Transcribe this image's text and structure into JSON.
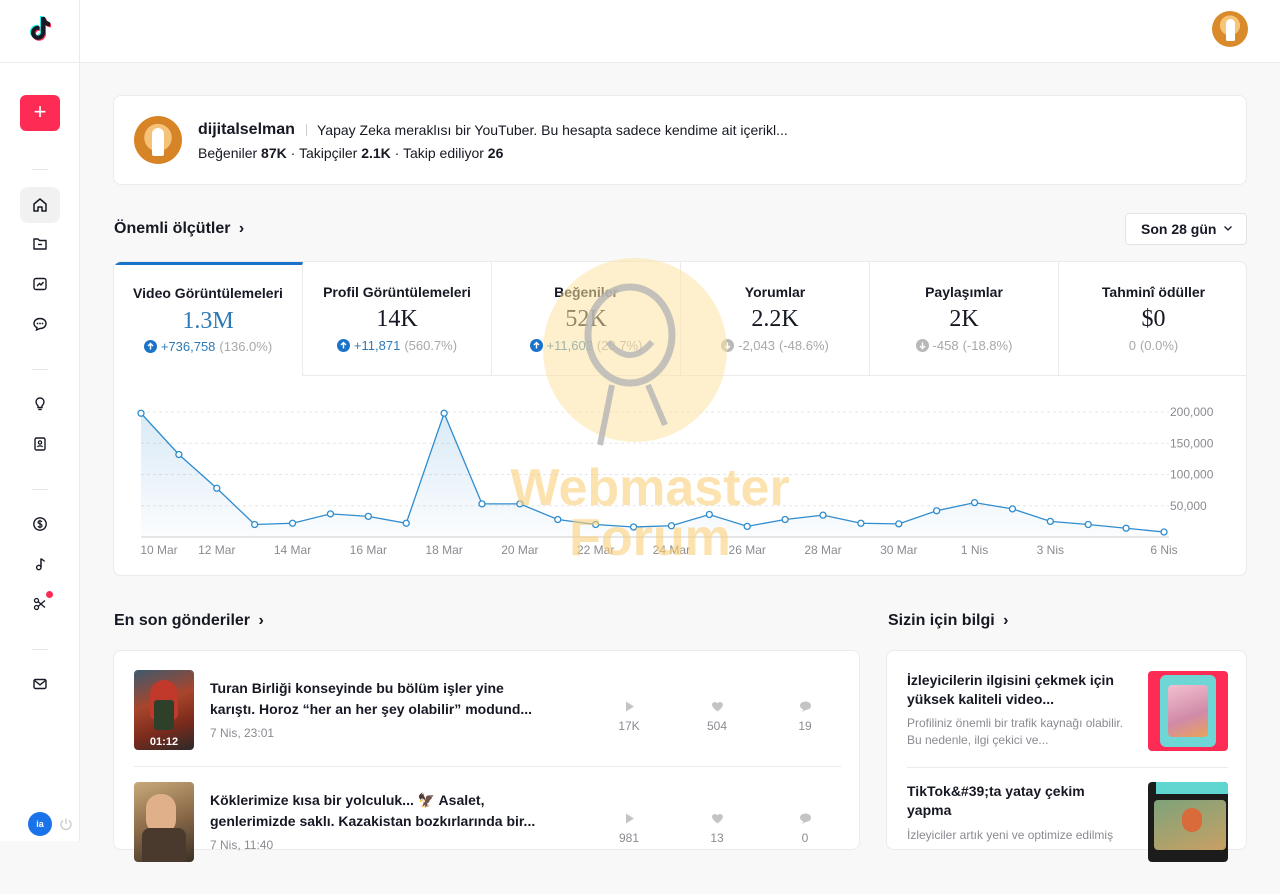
{
  "profile": {
    "username": "dijitalselman",
    "bio": "Yapay Zeka meraklısı bir YouTuber. Bu hesapta sadece kendime ait içerikl...",
    "likes_label": "Beğeniler",
    "likes_value": "87K",
    "followers_label": "Takipçiler",
    "followers_value": "2.1K",
    "following_label": "Takip ediliyor",
    "following_value": "26"
  },
  "metrics_section": {
    "title": "Önemli ölçütler",
    "period": "Son 28 gün"
  },
  "metrics": [
    {
      "label": "Video Görüntülemeleri",
      "value": "1.3M",
      "change": "+736,758",
      "pct": "(136.0%)",
      "direction": "up"
    },
    {
      "label": "Profil Görüntülemeleri",
      "value": "14K",
      "change": "+11,871",
      "pct": "(560.7%)",
      "direction": "up"
    },
    {
      "label": "Beğeniler",
      "value": "52K",
      "change": "+11,602",
      "pct": "(28.7%)",
      "direction": "up"
    },
    {
      "label": "Yorumlar",
      "value": "2.2K",
      "change": "-2,043",
      "pct": "(-48.6%)",
      "direction": "down"
    },
    {
      "label": "Paylaşımlar",
      "value": "2K",
      "change": "-458",
      "pct": "(-18.8%)",
      "direction": "down"
    },
    {
      "label": "Tahminî ödüller",
      "value": "$0",
      "change": "0",
      "pct": "(0.0%)",
      "direction": "none"
    }
  ],
  "chart_data": {
    "type": "area",
    "x_tick_labels": [
      "10 Mar",
      "12 Mar",
      "14 Mar",
      "16 Mar",
      "18 Mar",
      "20 Mar",
      "22 Mar",
      "24 Mar",
      "26 Mar",
      "28 Mar",
      "30 Mar",
      "1 Nis",
      "3 Nis",
      "6 Nis"
    ],
    "y_tick_labels": [
      "200,000",
      "150,000",
      "100,000",
      "50,000"
    ],
    "ylim": [
      0,
      200000
    ],
    "grid": true,
    "color": "#2f8ccf",
    "values": [
      198000,
      132000,
      78000,
      20000,
      22000,
      37000,
      33000,
      22000,
      198000,
      53000,
      53000,
      28000,
      20000,
      16000,
      18000,
      36000,
      17000,
      28000,
      35000,
      22000,
      21000,
      42000,
      55000,
      45000,
      25000,
      20000,
      14000,
      8000
    ]
  },
  "recent": {
    "title": "En son gönderiler",
    "posts": [
      {
        "title": "Turan Birliği konseyinde bu bölüm işler yine karıştı. Horoz “her an her şey olabilir” modund...",
        "date": "7 Nis, 23:01",
        "duration": "01:12",
        "views": "17K",
        "likes": "504",
        "comments": "19"
      },
      {
        "title": "Köklerimize kısa bir yolculuk... 🦅 Asalet, genlerimizde saklı. Kazakistan bozkırlarında bir...",
        "date": "7 Nis, 11:40",
        "duration": "",
        "views": "981",
        "likes": "13",
        "comments": "0"
      }
    ]
  },
  "tips": {
    "title": "Sizin için bilgi",
    "items": [
      {
        "title": "İzleyicilerin ilgisini çekmek için yüksek kaliteli video...",
        "desc": "Profiliniz önemli bir trafik kaynağı olabilir. Bu nedenle, ilgi çekici ve..."
      },
      {
        "title": "TikTok&#39;ta yatay çekim yapma",
        "desc": "İzleyiciler artık yeni ve optimize edilmiş"
      }
    ]
  },
  "sidebar": {
    "upload_symbol": "+",
    "badge_text": "ia"
  },
  "watermark": {
    "line1": "Webmaster",
    "line2": "Forum"
  }
}
